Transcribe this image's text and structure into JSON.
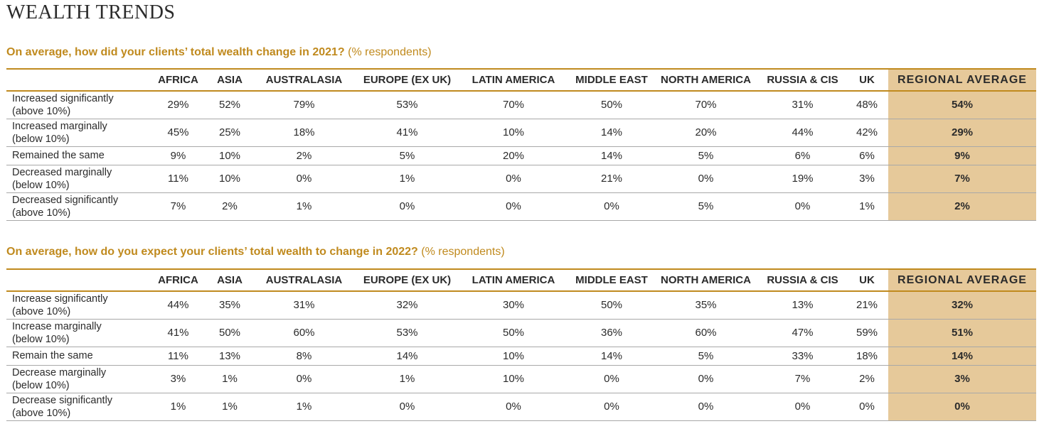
{
  "title": "WEALTH TRENDS",
  "columns": [
    "AFRICA",
    "ASIA",
    "AUSTRALASIA",
    "EUROPE (EX UK)",
    "LATIN AMERICA",
    "MIDDLE EAST",
    "NORTH AMERICA",
    "RUSSIA & CIS",
    "UK",
    "REGIONAL AVERAGE"
  ],
  "accent_color": "#c08a1e",
  "highlight_color": "#e6c99a",
  "sections": [
    {
      "question": "On average, how did your clients’ total wealth change in 2021?",
      "note": "(% respondents)",
      "rows": [
        {
          "label_1": "Increased significantly",
          "label_2": "(above 10%)",
          "values": [
            "29%",
            "52%",
            "79%",
            "53%",
            "70%",
            "50%",
            "70%",
            "31%",
            "48%",
            "54%"
          ]
        },
        {
          "label_1": "Increased marginally",
          "label_2": "(below 10%)",
          "values": [
            "45%",
            "25%",
            "18%",
            "41%",
            "10%",
            "14%",
            "20%",
            "44%",
            "42%",
            "29%"
          ]
        },
        {
          "label_1": "Remained the same",
          "label_2": "",
          "values": [
            "9%",
            "10%",
            "2%",
            "5%",
            "20%",
            "14%",
            "5%",
            "6%",
            "6%",
            "9%"
          ]
        },
        {
          "label_1": "Decreased marginally",
          "label_2": "(below 10%)",
          "values": [
            "11%",
            "10%",
            "0%",
            "1%",
            "0%",
            "21%",
            "0%",
            "19%",
            "3%",
            "7%"
          ]
        },
        {
          "label_1": "Decreased significantly",
          "label_2": "(above 10%)",
          "values": [
            "7%",
            "2%",
            "1%",
            "0%",
            "0%",
            "0%",
            "5%",
            "0%",
            "1%",
            "2%"
          ]
        }
      ]
    },
    {
      "question": "On average, how do you expect your clients’ total wealth to change in 2022?",
      "note": "(% respondents)",
      "rows": [
        {
          "label_1": "Increase significantly",
          "label_2": "(above 10%)",
          "values": [
            "44%",
            "35%",
            "31%",
            "32%",
            "30%",
            "50%",
            "35%",
            "13%",
            "21%",
            "32%"
          ]
        },
        {
          "label_1": "Increase marginally",
          "label_2": "(below 10%)",
          "values": [
            "41%",
            "50%",
            "60%",
            "53%",
            "50%",
            "36%",
            "60%",
            "47%",
            "59%",
            "51%"
          ]
        },
        {
          "label_1": "Remain the same",
          "label_2": "",
          "values": [
            "11%",
            "13%",
            "8%",
            "14%",
            "10%",
            "14%",
            "5%",
            "33%",
            "18%",
            "14%"
          ]
        },
        {
          "label_1": "Decrease marginally",
          "label_2": "(below 10%)",
          "values": [
            "3%",
            "1%",
            "0%",
            "1%",
            "10%",
            "0%",
            "0%",
            "7%",
            "2%",
            "3%"
          ]
        },
        {
          "label_1": "Decrease significantly",
          "label_2": "(above 10%)",
          "values": [
            "1%",
            "1%",
            "1%",
            "0%",
            "0%",
            "0%",
            "0%",
            "0%",
            "0%",
            "0%"
          ]
        }
      ]
    }
  ]
}
